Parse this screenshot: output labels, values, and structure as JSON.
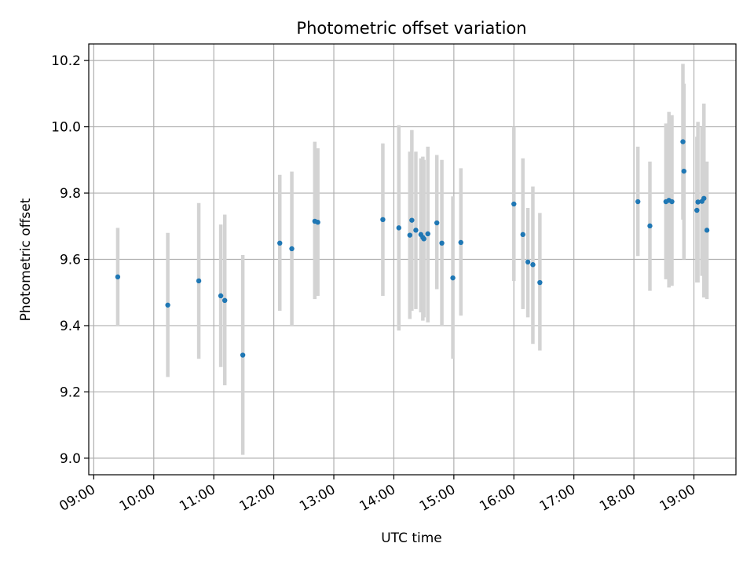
{
  "chart_data": {
    "type": "scatter",
    "title": "Photometric offset variation",
    "xlabel": "UTC time",
    "ylabel": "Photometric offset",
    "x_axis_type": "time",
    "xlim": [
      "08:55",
      "19:42"
    ],
    "ylim": [
      8.95,
      10.25
    ],
    "x_ticks": [
      "09:00",
      "10:00",
      "11:00",
      "12:00",
      "13:00",
      "14:00",
      "15:00",
      "16:00",
      "17:00",
      "18:00",
      "19:00"
    ],
    "y_ticks": [
      "9.0",
      "9.2",
      "9.4",
      "9.6",
      "9.8",
      "10.0",
      "10.2"
    ],
    "grid": true,
    "legend": "none",
    "colors": {
      "points": "#1f77b4",
      "errorbars": "#d3d3d3",
      "grid": "#b0b0b0"
    },
    "series": [
      {
        "points": [
          {
            "x": "09:24",
            "y": 9.547,
            "ylow": 9.4,
            "yhigh": 9.695
          },
          {
            "x": "10:14",
            "y": 9.462,
            "ylow": 9.245,
            "yhigh": 9.68
          },
          {
            "x": "10:45",
            "y": 9.535,
            "ylow": 9.3,
            "yhigh": 9.77
          },
          {
            "x": "11:07",
            "y": 9.49,
            "ylow": 9.275,
            "yhigh": 9.705
          },
          {
            "x": "11:11",
            "y": 9.476,
            "ylow": 9.22,
            "yhigh": 9.735
          },
          {
            "x": "11:29",
            "y": 9.311,
            "ylow": 9.01,
            "yhigh": 9.613
          },
          {
            "x": "12:06",
            "y": 9.649,
            "ylow": 9.445,
            "yhigh": 9.855
          },
          {
            "x": "12:18",
            "y": 9.632,
            "ylow": 9.4,
            "yhigh": 9.865
          },
          {
            "x": "12:41",
            "y": 9.715,
            "ylow": 9.48,
            "yhigh": 9.955
          },
          {
            "x": "12:44",
            "y": 9.712,
            "ylow": 9.49,
            "yhigh": 9.935
          },
          {
            "x": "13:49",
            "y": 9.72,
            "ylow": 9.49,
            "yhigh": 9.95
          },
          {
            "x": "14:05",
            "y": 9.695,
            "ylow": 9.385,
            "yhigh": 10.005
          },
          {
            "x": "14:16",
            "y": 9.673,
            "ylow": 9.42,
            "yhigh": 9.925
          },
          {
            "x": "14:18",
            "y": 9.718,
            "ylow": 9.445,
            "yhigh": 9.99
          },
          {
            "x": "14:22",
            "y": 9.688,
            "ylow": 9.45,
            "yhigh": 9.925
          },
          {
            "x": "14:27",
            "y": 9.675,
            "ylow": 9.44,
            "yhigh": 9.905
          },
          {
            "x": "14:29",
            "y": 9.666,
            "ylow": 9.415,
            "yhigh": 9.91
          },
          {
            "x": "14:30",
            "y": 9.662,
            "ylow": 9.425,
            "yhigh": 9.9
          },
          {
            "x": "14:34",
            "y": 9.677,
            "ylow": 9.41,
            "yhigh": 9.94
          },
          {
            "x": "14:43",
            "y": 9.71,
            "ylow": 9.51,
            "yhigh": 9.915
          },
          {
            "x": "14:48",
            "y": 9.649,
            "ylow": 9.4,
            "yhigh": 9.9
          },
          {
            "x": "14:59",
            "y": 9.544,
            "ylow": 9.3,
            "yhigh": 9.79
          },
          {
            "x": "15:07",
            "y": 9.651,
            "ylow": 9.43,
            "yhigh": 9.875
          },
          {
            "x": "16:00",
            "y": 9.767,
            "ylow": 9.535,
            "yhigh": 10.0
          },
          {
            "x": "16:09",
            "y": 9.675,
            "ylow": 9.45,
            "yhigh": 9.905
          },
          {
            "x": "16:14",
            "y": 9.592,
            "ylow": 9.425,
            "yhigh": 9.755
          },
          {
            "x": "16:19",
            "y": 9.584,
            "ylow": 9.345,
            "yhigh": 9.82
          },
          {
            "x": "16:26",
            "y": 9.53,
            "ylow": 9.325,
            "yhigh": 9.74
          },
          {
            "x": "18:04",
            "y": 9.774,
            "ylow": 9.61,
            "yhigh": 9.94
          },
          {
            "x": "18:16",
            "y": 9.701,
            "ylow": 9.505,
            "yhigh": 9.895
          },
          {
            "x": "18:32",
            "y": 9.774,
            "ylow": 9.54,
            "yhigh": 10.01
          },
          {
            "x": "18:35",
            "y": 9.778,
            "ylow": 9.515,
            "yhigh": 10.045
          },
          {
            "x": "18:38",
            "y": 9.774,
            "ylow": 9.52,
            "yhigh": 10.035
          },
          {
            "x": "18:49",
            "y": 9.955,
            "ylow": 9.72,
            "yhigh": 10.19
          },
          {
            "x": "18:50",
            "y": 9.866,
            "ylow": 9.6,
            "yhigh": 10.13
          },
          {
            "x": "19:03",
            "y": 9.748,
            "ylow": 9.53,
            "yhigh": 9.97
          },
          {
            "x": "19:04",
            "y": 9.773,
            "ylow": 9.53,
            "yhigh": 10.015
          },
          {
            "x": "19:08",
            "y": 9.775,
            "ylow": 9.55,
            "yhigh": 10.0
          },
          {
            "x": "19:10",
            "y": 9.784,
            "ylow": 9.485,
            "yhigh": 10.07
          },
          {
            "x": "19:13",
            "y": 9.688,
            "ylow": 9.48,
            "yhigh": 9.895
          }
        ]
      }
    ]
  }
}
